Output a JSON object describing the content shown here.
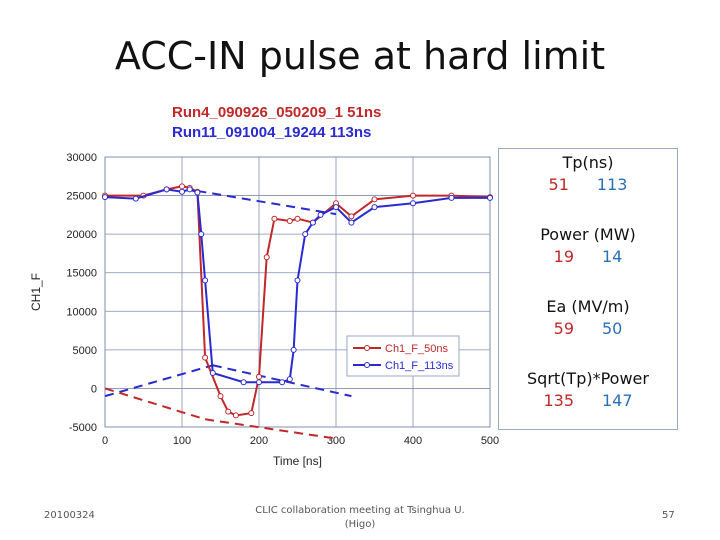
{
  "title": "ACC-IN pulse at hard limit",
  "runs": [
    "Run4_090926_050209_1 51ns",
    "Run11_091004_19244 113ns"
  ],
  "stats": [
    {
      "label": "Tp(ns)",
      "values": [
        "51",
        "113"
      ]
    },
    {
      "label": "Power (MW)",
      "values": [
        "19",
        "14"
      ]
    },
    {
      "label": "Ea (MV/m)",
      "values": [
        "59",
        "50"
      ]
    },
    {
      "label": "Sqrt(Tp)*Power",
      "values": [
        "135",
        "147"
      ]
    }
  ],
  "footer": {
    "date": "20100324",
    "center": [
      "CLIC collaboration meeting at Tsinghua U.",
      "(Higo)"
    ],
    "page": "57"
  },
  "chart_data": {
    "type": "line",
    "xlabel": "Time [ns]",
    "ylabel": "CH1_F",
    "xlim": [
      0,
      500
    ],
    "ylim": [
      -5000,
      30000
    ],
    "xticks": [
      0,
      100,
      200,
      300,
      400,
      500
    ],
    "yticks": [
      -5000,
      0,
      5000,
      10000,
      15000,
      20000,
      25000,
      30000
    ],
    "ytick_labels": [
      "-5000",
      "0",
      "5000",
      "10000",
      "15000",
      "20000",
      "25000",
      "30000"
    ],
    "grid": true,
    "legend_position": "lower-right",
    "series": [
      {
        "name": "Ch1_F_50ns",
        "color": "#c0282a",
        "x": [
          0,
          50,
          80,
          100,
          110,
          120,
          130,
          150,
          160,
          170,
          190,
          200,
          210,
          220,
          240,
          250,
          270,
          300,
          320,
          350,
          400,
          450,
          500
        ],
        "y": [
          25000,
          25000,
          25800,
          26200,
          26000,
          25500,
          4000,
          -1000,
          -3000,
          -3500,
          -3200,
          1500,
          17000,
          22000,
          21700,
          22000,
          21500,
          24000,
          22300,
          24500,
          25000,
          25000,
          24800
        ]
      },
      {
        "name": "Ch1_F_113ns",
        "color": "#2a2ad0",
        "x": [
          0,
          40,
          80,
          100,
          110,
          120,
          125,
          130,
          140,
          180,
          200,
          230,
          240,
          245,
          250,
          260,
          270,
          280,
          300,
          320,
          350,
          400,
          450,
          500
        ],
        "y": [
          24800,
          24600,
          25800,
          25500,
          25800,
          25400,
          20000,
          14000,
          2000,
          800,
          800,
          800,
          1200,
          5000,
          14000,
          20000,
          21500,
          22500,
          23500,
          21500,
          23500,
          24000,
          24700,
          24700
        ]
      }
    ],
    "envelopes": [
      {
        "color": "#2a2ad0",
        "x": [
          120,
          300
        ],
        "y": [
          25600,
          22600
        ]
      },
      {
        "color": "#2a2ad0",
        "x": [
          0,
          140
        ],
        "y": [
          -1000,
          3000
        ]
      },
      {
        "color": "#2a2ad0",
        "x": [
          140,
          320
        ],
        "y": [
          3000,
          -1000
        ]
      },
      {
        "color": "#c0282a",
        "x": [
          0,
          130
        ],
        "y": [
          0,
          -4000
        ]
      },
      {
        "color": "#c0282a",
        "x": [
          130,
          300
        ],
        "y": [
          -4000,
          -6500
        ]
      }
    ]
  }
}
